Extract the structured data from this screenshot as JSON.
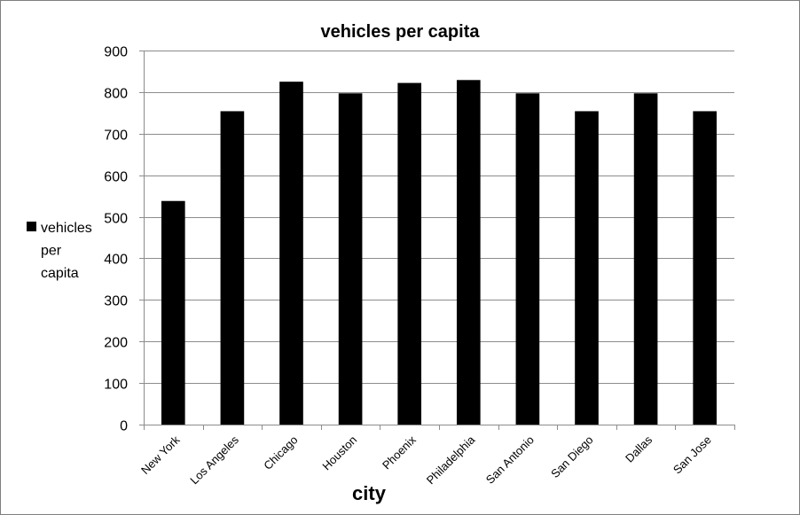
{
  "chart_data": {
    "type": "bar",
    "title": "vehicles per capita",
    "xlabel": "city",
    "ylabel": "",
    "categories": [
      "New York",
      "Los Angeles",
      "Chicago",
      "Houston",
      "Phoenix",
      "Philadelphia",
      "San Antonio",
      "San Diego",
      "Dallas",
      "San Jose"
    ],
    "series": [
      {
        "name": "vehicles per capita",
        "color": "#000000",
        "values": [
          538,
          754,
          825,
          797,
          822,
          829,
          797,
          754,
          797,
          754
        ]
      }
    ],
    "ylim": [
      0,
      900
    ],
    "yticks": [
      0,
      100,
      200,
      300,
      400,
      500,
      600,
      700,
      800,
      900
    ],
    "grid": true,
    "legend_position": "left",
    "legend_lines": [
      "vehicles",
      "per",
      "capita"
    ]
  }
}
